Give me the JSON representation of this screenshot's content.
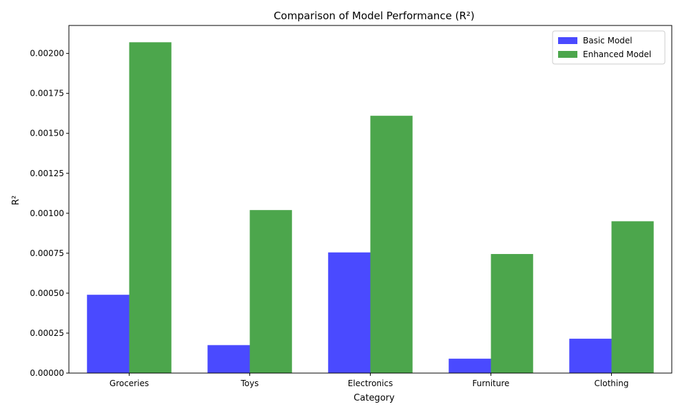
{
  "chart_data": {
    "type": "bar",
    "title": "Comparison of Model Performance (R²)",
    "xlabel": "Category",
    "ylabel": "R²",
    "categories": [
      "Groceries",
      "Toys",
      "Electronics",
      "Furniture",
      "Clothing"
    ],
    "series": [
      {
        "name": "Basic Model",
        "color": "#4a4aff",
        "values": [
          0.00049,
          0.000175,
          0.000755,
          9e-05,
          0.000215
        ]
      },
      {
        "name": "Enhanced Model",
        "color": "#4ca64c",
        "values": [
          0.00207,
          0.00102,
          0.00161,
          0.000745,
          0.00095
        ]
      }
    ],
    "ylim": [
      0,
      0.002175
    ],
    "yticks": [
      0,
      0.00025,
      0.0005,
      0.00075,
      0.001,
      0.00125,
      0.0015,
      0.00175,
      0.002
    ],
    "ytick_labels": [
      "0.00000",
      "0.00025",
      "0.00050",
      "0.00075",
      "0.00100",
      "0.00125",
      "0.00150",
      "0.00175",
      "0.00200"
    ],
    "grid": false,
    "legend_position": "top-right"
  }
}
